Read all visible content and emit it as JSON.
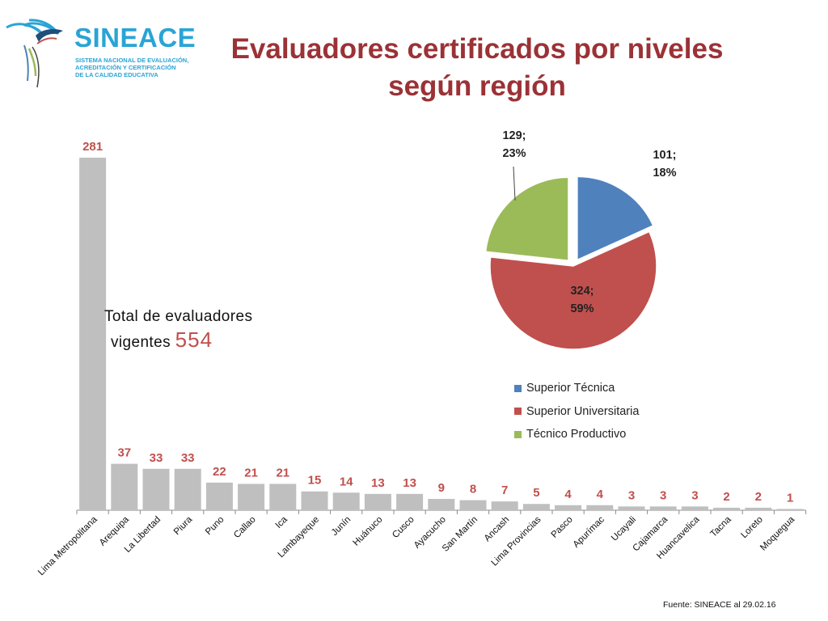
{
  "brand": {
    "name": "SINEACE",
    "subtitle_lines": [
      "SISTEMA NACIONAL DE EVALUACIÓN,",
      "ACREDITACIÓN Y CERTIFICACIÓN",
      "DE LA CALIDAD EDUCATIVA"
    ]
  },
  "title": {
    "line1": "Evaluadores certificados por niveles",
    "line2": "según región"
  },
  "total": {
    "label_line1": "Total de evaluadores",
    "label_line2": "vigentes",
    "value": "554"
  },
  "source": "Fuente: SINEACE al  29.02.16",
  "colors": {
    "bar": "#bfbfbf",
    "bar_label": "#c0504d",
    "title": "#9b3236",
    "brand": "#2aa4d6"
  },
  "chart_data": [
    {
      "type": "bar",
      "categories": [
        "Lima Metropolitana",
        "Arequipa",
        "La Libertad",
        "Piura",
        "Puno",
        "Callao",
        "Ica",
        "Lambayeque",
        "Junín",
        "Huánuco",
        "Cusco",
        "Ayacucho",
        "San Martín",
        "Ancash",
        "Lima Provincias",
        "Pasco",
        "Apurímac",
        "Ucayali",
        "Cajamarca",
        "Huancavelica",
        "Tacna",
        "Loreto",
        "Moquegua"
      ],
      "values": [
        281,
        37,
        33,
        33,
        22,
        21,
        21,
        15,
        14,
        13,
        13,
        9,
        8,
        7,
        5,
        4,
        4,
        3,
        3,
        3,
        2,
        2,
        1
      ],
      "data_labels": true,
      "grid": false
    },
    {
      "type": "pie",
      "labels": [
        "Superior Técnica",
        "Superior Universitaria",
        "Técnico Productivo"
      ],
      "values": [
        101,
        324,
        129
      ],
      "percent_labels": [
        "101;\n18%",
        "324;\n59%",
        "129;\n23%"
      ],
      "colors": [
        "#4f81bd",
        "#c0504d",
        "#9bbb59"
      ],
      "exploded": [
        "Superior Técnica",
        "Técnico Productivo"
      ],
      "legend_position": "bottom"
    }
  ]
}
